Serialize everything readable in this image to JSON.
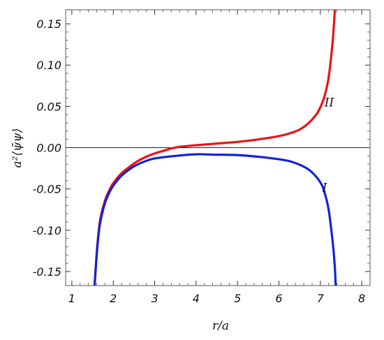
{
  "chart_data": {
    "type": "line",
    "title": "",
    "xlabel": "r/a",
    "ylabel": "a²⟨ψ̄ψ⟩",
    "xlim": [
      0.85,
      8.2
    ],
    "ylim": [
      -0.167,
      0.167
    ],
    "xticks": [
      1,
      2,
      3,
      4,
      5,
      6,
      7,
      8
    ],
    "yticks": [
      -0.15,
      -0.1,
      -0.05,
      0.0,
      0.05,
      0.1,
      0.15
    ],
    "ytick_labels": [
      "-0.15",
      "-0.10",
      "-0.05",
      "0.00",
      "0.05",
      "0.10",
      "0.15"
    ],
    "grid": false,
    "zero_line": true,
    "series": [
      {
        "name": "II",
        "color": "#ee1111",
        "label_at": [
          7.1,
          0.055
        ],
        "points": [
          [
            1.55,
            -0.167
          ],
          [
            1.6,
            -0.128
          ],
          [
            1.65,
            -0.1
          ],
          [
            1.7,
            -0.083
          ],
          [
            1.8,
            -0.064
          ],
          [
            1.9,
            -0.052
          ],
          [
            2.0,
            -0.043
          ],
          [
            2.2,
            -0.031
          ],
          [
            2.4,
            -0.023
          ],
          [
            2.6,
            -0.016
          ],
          [
            2.8,
            -0.011
          ],
          [
            3.0,
            -0.007
          ],
          [
            3.2,
            -0.004
          ],
          [
            3.4,
            -0.001
          ],
          [
            3.6,
            0.001
          ],
          [
            3.8,
            0.002
          ],
          [
            4.0,
            0.003
          ],
          [
            4.5,
            0.005
          ],
          [
            5.0,
            0.007
          ],
          [
            5.5,
            0.01
          ],
          [
            6.0,
            0.014
          ],
          [
            6.3,
            0.018
          ],
          [
            6.5,
            0.022
          ],
          [
            6.7,
            0.029
          ],
          [
            6.9,
            0.04
          ],
          [
            7.0,
            0.049
          ],
          [
            7.1,
            0.062
          ],
          [
            7.2,
            0.085
          ],
          [
            7.3,
            0.13
          ],
          [
            7.35,
            0.167
          ]
        ]
      },
      {
        "name": "I",
        "color": "#1122dd",
        "label_at": [
          7.05,
          -0.048
        ],
        "points": [
          [
            1.55,
            -0.167
          ],
          [
            1.6,
            -0.13
          ],
          [
            1.65,
            -0.103
          ],
          [
            1.7,
            -0.087
          ],
          [
            1.8,
            -0.067
          ],
          [
            1.9,
            -0.055
          ],
          [
            2.0,
            -0.046
          ],
          [
            2.2,
            -0.034
          ],
          [
            2.4,
            -0.026
          ],
          [
            2.6,
            -0.02
          ],
          [
            2.8,
            -0.016
          ],
          [
            3.0,
            -0.013
          ],
          [
            3.5,
            -0.01
          ],
          [
            4.0,
            -0.008
          ],
          [
            4.5,
            -0.0085
          ],
          [
            5.0,
            -0.009
          ],
          [
            5.5,
            -0.011
          ],
          [
            6.0,
            -0.014
          ],
          [
            6.3,
            -0.017
          ],
          [
            6.6,
            -0.023
          ],
          [
            6.8,
            -0.03
          ],
          [
            7.0,
            -0.042
          ],
          [
            7.1,
            -0.054
          ],
          [
            7.2,
            -0.075
          ],
          [
            7.3,
            -0.115
          ],
          [
            7.35,
            -0.145
          ],
          [
            7.37,
            -0.167
          ]
        ]
      }
    ]
  }
}
